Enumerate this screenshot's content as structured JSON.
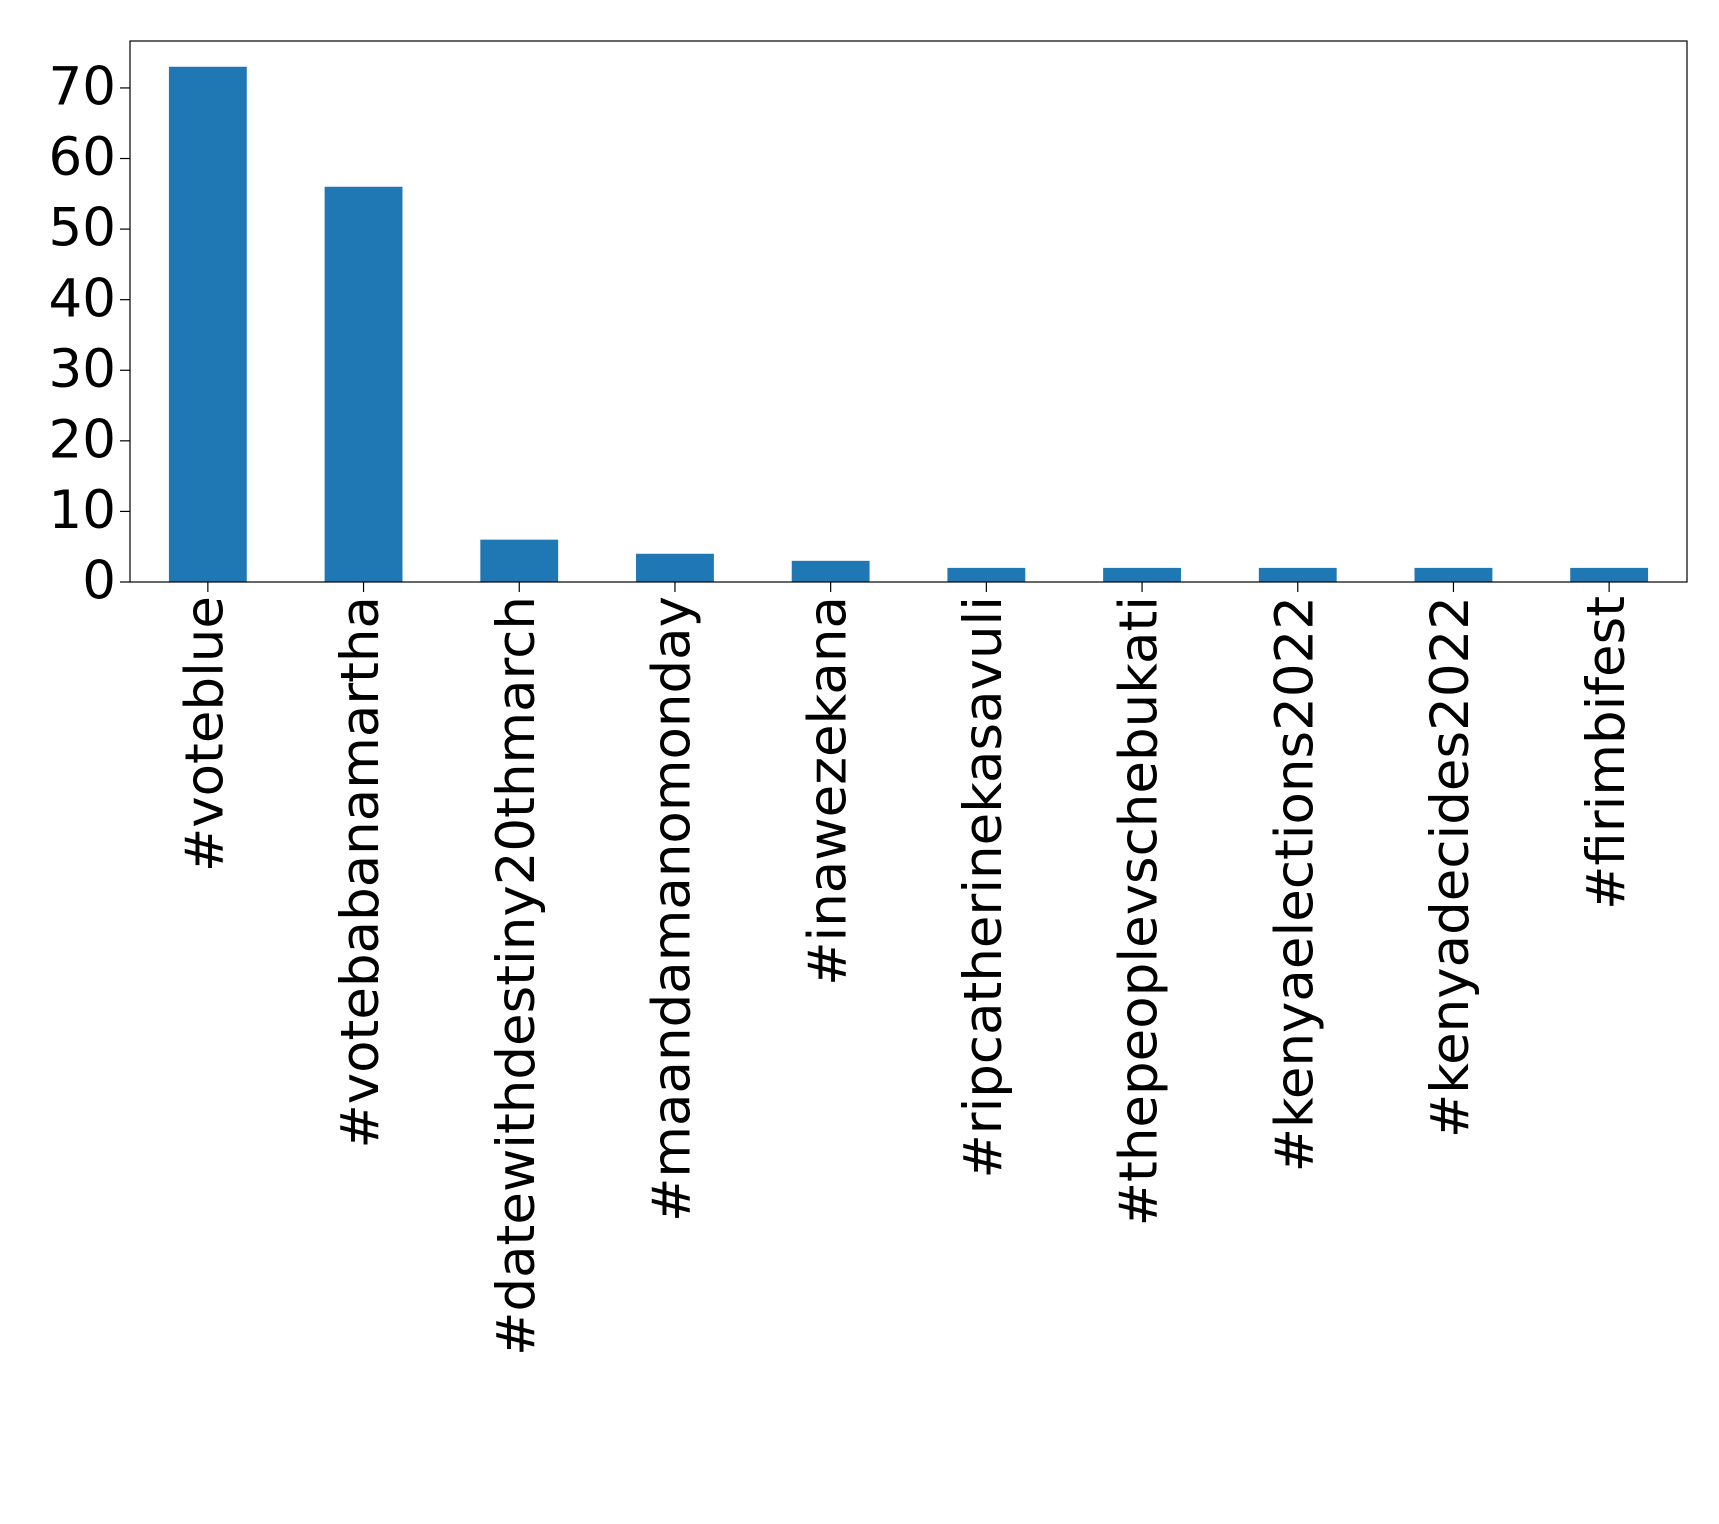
{
  "chart_data": {
    "type": "bar",
    "categories": [
      "#voteblue",
      "#votebabanamartha",
      "#datewithdestiny20thmarch",
      "#maandamanomonday",
      "#inawezekana",
      "#ripcatherinekasavuli",
      "#thepeoplevschebukati",
      "#kenyaelections2022",
      "#kenyadecides2022",
      "#firimbifest"
    ],
    "values": [
      73,
      56,
      6,
      4,
      3,
      2,
      2,
      2,
      2,
      2
    ],
    "color": "#1f77b4",
    "ylim": [
      0,
      76.65
    ],
    "yticks": [
      0,
      10,
      20,
      30,
      40,
      50,
      60,
      70
    ],
    "grid": false
  }
}
